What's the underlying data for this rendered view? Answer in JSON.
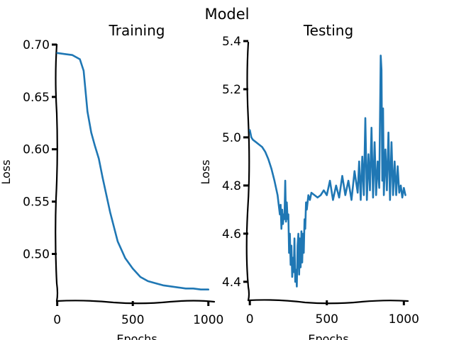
{
  "chart_data": {
    "title": "Model",
    "panels": [
      {
        "type": "line",
        "title": "Training",
        "xlabel": "Epochs",
        "ylabel": "Loss",
        "xlim": [
          -50,
          1020
        ],
        "ylim": [
          0.455,
          0.702
        ],
        "xticks": [
          0,
          500,
          1000
        ],
        "yticks": [
          0.5,
          0.55,
          0.6,
          0.65,
          0.7
        ],
        "ytick_labels": [
          "0.50",
          "0.55",
          "0.60",
          "0.65",
          "0.70"
        ],
        "grid": false,
        "series": [
          {
            "color": "#1f77b4",
            "x": [
              0,
              50,
              100,
              150,
              175,
              200,
              225,
              250,
              275,
              300,
              350,
              400,
              450,
              500,
              550,
              600,
              650,
              700,
              750,
              800,
              850,
              900,
              950,
              1000
            ],
            "y": [
              0.692,
              0.691,
              0.69,
              0.686,
              0.675,
              0.636,
              0.616,
              0.603,
              0.591,
              0.573,
              0.54,
              0.512,
              0.496,
              0.486,
              0.478,
              0.474,
              0.472,
              0.47,
              0.469,
              0.468,
              0.467,
              0.467,
              0.466,
              0.466
            ]
          }
        ]
      },
      {
        "type": "line",
        "title": "Testing",
        "xlabel": "Epochs",
        "ylabel": "Loss",
        "xlim": [
          -10,
          1040
        ],
        "ylim": [
          4.32,
          5.4
        ],
        "xticks": [
          0,
          500,
          1000
        ],
        "yticks": [
          4.4,
          4.6,
          4.8,
          5.0,
          5.2,
          5.4
        ],
        "ytick_labels": [
          "4.4",
          "4.6",
          "4.8",
          "5.0",
          "5.2",
          "5.4"
        ],
        "grid": false,
        "series": [
          {
            "color": "#1f77b4",
            "x": [
              0,
              10,
              20,
              40,
              60,
              80,
              100,
              120,
              140,
              160,
              180,
              195,
              200,
              205,
              210,
              215,
              220,
              225,
              230,
              235,
              240,
              245,
              250,
              255,
              260,
              265,
              270,
              275,
              280,
              285,
              290,
              295,
              300,
              305,
              310,
              315,
              320,
              325,
              330,
              335,
              340,
              345,
              350,
              355,
              360,
              365,
              370,
              380,
              390,
              400,
              420,
              440,
              460,
              480,
              500,
              520,
              540,
              560,
              580,
              600,
              620,
              640,
              660,
              680,
              700,
              710,
              720,
              730,
              740,
              750,
              760,
              770,
              780,
              790,
              800,
              810,
              820,
              830,
              840,
              850,
              855,
              860,
              865,
              870,
              880,
              890,
              900,
              910,
              920,
              930,
              940,
              950,
              960,
              970,
              980,
              990,
              1000,
              1010
            ],
            "y": [
              5.03,
              5.0,
              4.99,
              4.98,
              4.97,
              4.96,
              4.94,
              4.91,
              4.87,
              4.82,
              4.76,
              4.68,
              4.72,
              4.62,
              4.7,
              4.64,
              4.68,
              4.66,
              4.82,
              4.65,
              4.73,
              4.66,
              4.68,
              4.52,
              4.6,
              4.47,
              4.55,
              4.42,
              4.5,
              4.44,
              4.58,
              4.4,
              4.45,
              4.38,
              4.55,
              4.6,
              4.43,
              4.58,
              4.46,
              4.61,
              4.48,
              4.6,
              4.52,
              4.66,
              4.62,
              4.73,
              4.7,
              4.76,
              4.74,
              4.77,
              4.76,
              4.75,
              4.76,
              4.78,
              4.76,
              4.82,
              4.74,
              4.8,
              4.75,
              4.84,
              4.76,
              4.82,
              4.74,
              4.86,
              4.77,
              4.9,
              4.74,
              4.92,
              4.76,
              5.08,
              4.74,
              4.93,
              4.78,
              5.04,
              4.75,
              4.98,
              4.76,
              4.9,
              4.79,
              5.34,
              5.28,
              4.82,
              5.12,
              4.76,
              4.95,
              4.78,
              5.02,
              4.74,
              4.98,
              4.76,
              4.9,
              4.76,
              4.88,
              4.77,
              4.8,
              4.75,
              4.79,
              4.76
            ]
          }
        ]
      }
    ]
  }
}
